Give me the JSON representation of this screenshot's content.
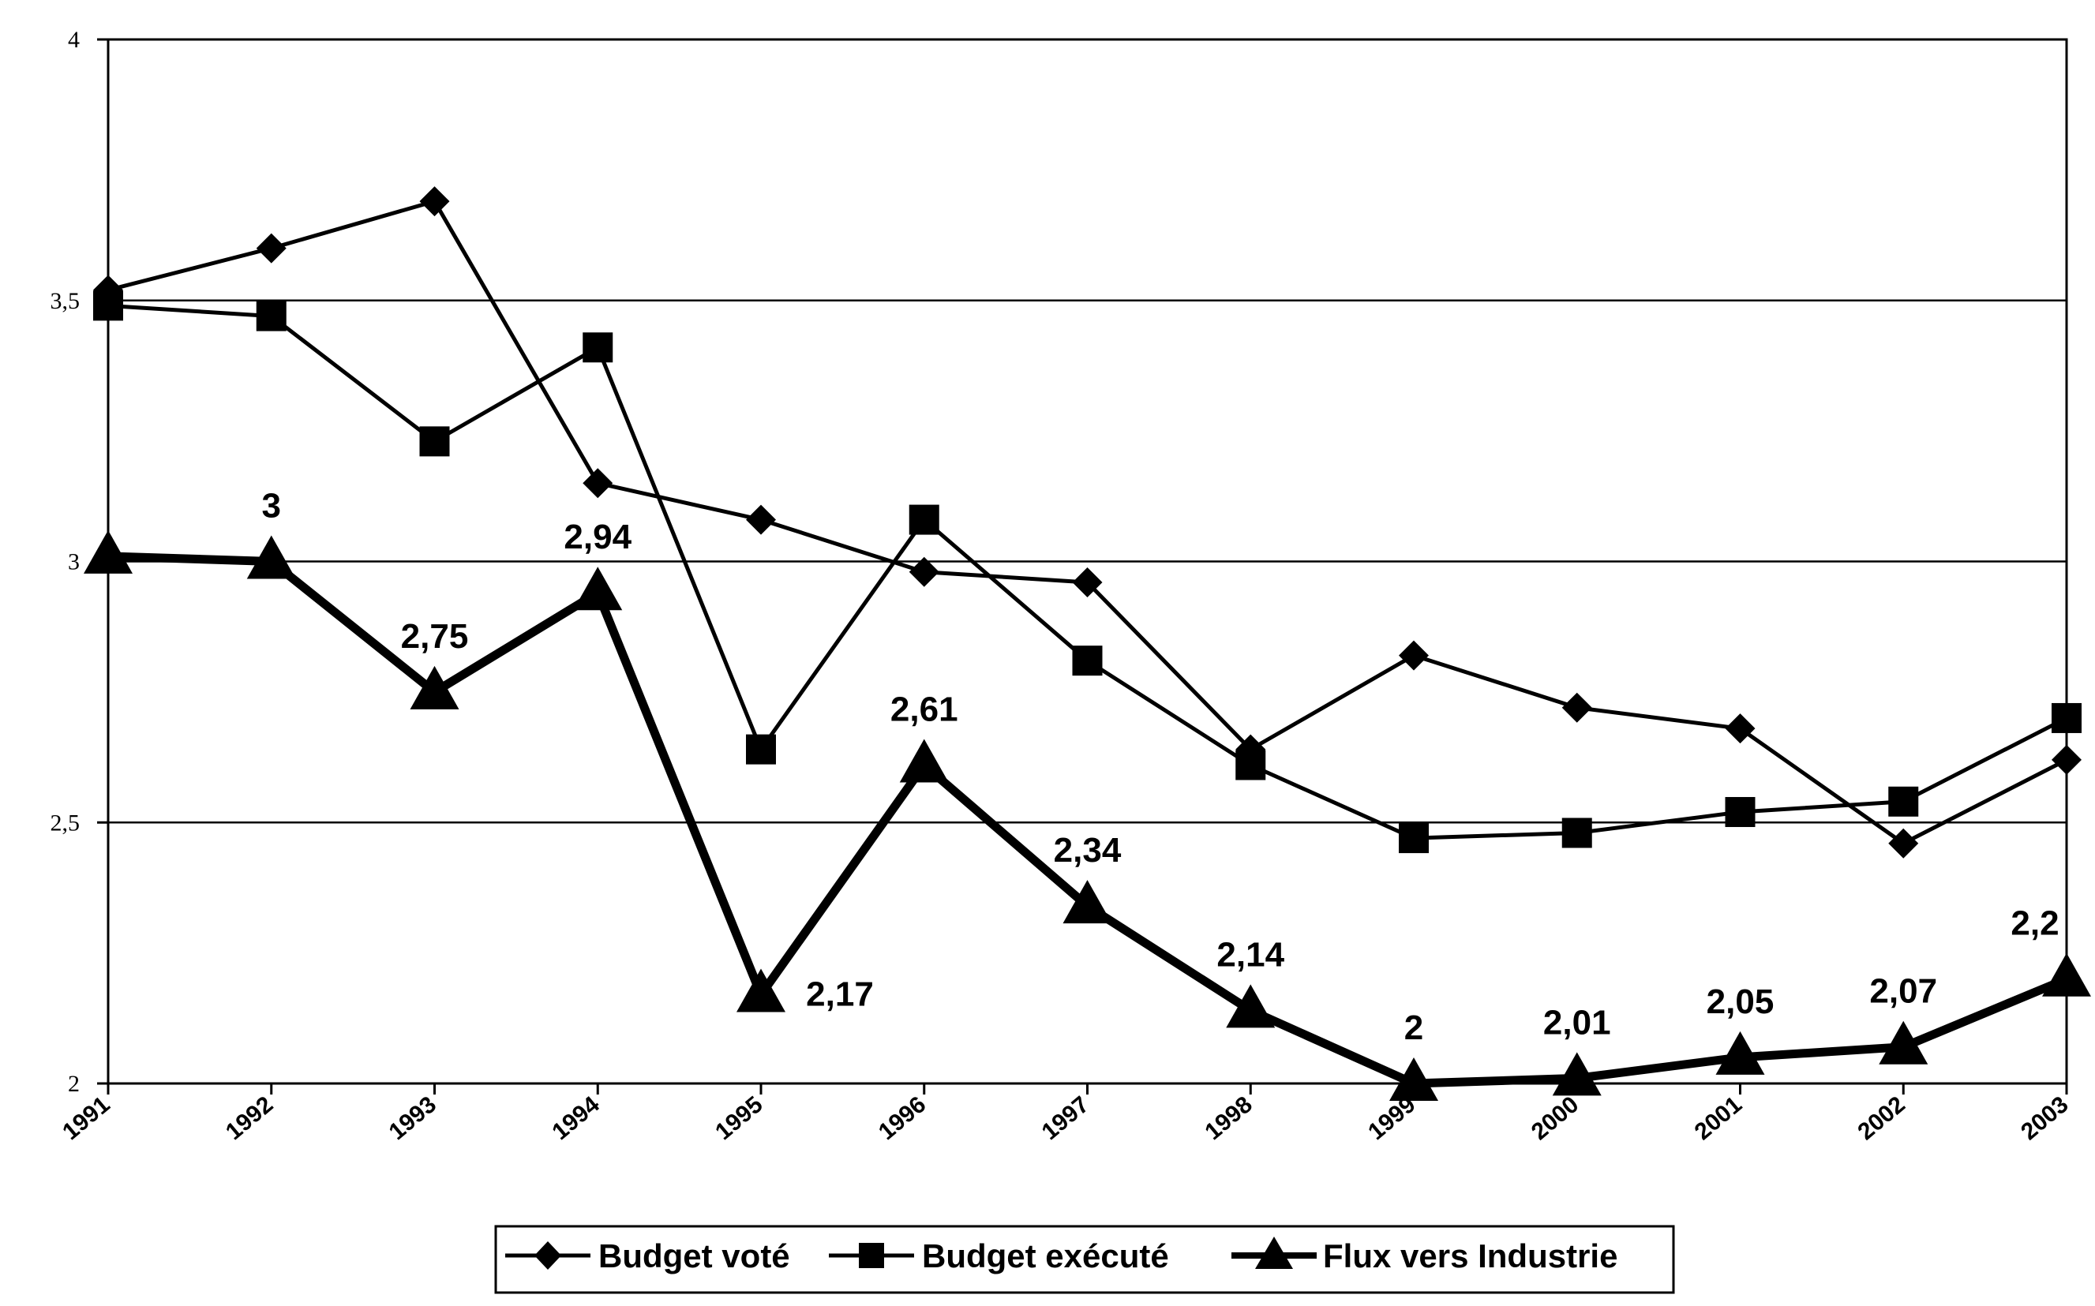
{
  "chart_data": {
    "type": "line",
    "title": "",
    "xlabel": "",
    "ylabel": "",
    "ylim": [
      2,
      4
    ],
    "yticks": [
      "2",
      "2,5",
      "3",
      "3,5",
      "4"
    ],
    "ytick_values": [
      2,
      2.5,
      3,
      3.5,
      4
    ],
    "categories": [
      "1991",
      "1992",
      "1993",
      "1994",
      "1995",
      "1996",
      "1997",
      "1998",
      "1999",
      "2000",
      "2001",
      "2002",
      "2003"
    ],
    "grid": "horizontal",
    "legend_position": "bottom",
    "series": [
      {
        "name": "Budget voté",
        "marker": "diamond",
        "values": [
          3.52,
          3.6,
          3.69,
          3.15,
          3.08,
          2.98,
          2.96,
          2.64,
          2.82,
          2.72,
          2.68,
          2.46,
          2.62
        ]
      },
      {
        "name": "Budget exécuté",
        "marker": "square",
        "values": [
          3.49,
          3.47,
          3.23,
          3.41,
          2.64,
          3.08,
          2.81,
          2.61,
          2.47,
          2.48,
          2.52,
          2.54,
          2.7
        ]
      },
      {
        "name": "Flux vers Industrie",
        "marker": "triangle",
        "values": [
          3.01,
          3.0,
          2.75,
          2.94,
          2.17,
          2.61,
          2.34,
          2.14,
          2.0,
          2.01,
          2.05,
          2.07,
          2.2
        ],
        "data_labels": [
          "",
          "3",
          "2,75",
          "2,94",
          "2,17",
          "2,61",
          "2,34",
          "2,14",
          "2",
          "2,01",
          "2,05",
          "2,07",
          "2,2"
        ]
      }
    ]
  }
}
